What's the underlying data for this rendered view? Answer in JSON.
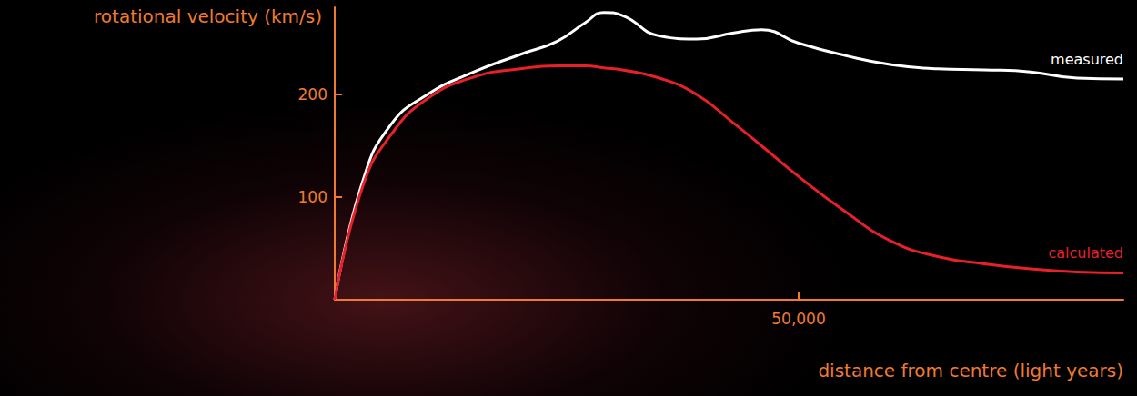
{
  "chart_data": {
    "type": "line",
    "x_label": "distance from centre (light years)",
    "y_label": "rotational velocity (km/s)",
    "x": [
      0,
      3000,
      6000,
      10000,
      15000,
      20000,
      24000,
      27000,
      29000,
      31000,
      35000,
      39000,
      43000,
      46000,
      50000,
      55000,
      60000,
      65000,
      70000,
      75000,
      80000,
      85000
    ],
    "series": [
      {
        "name": "measured",
        "color": "#ffffff",
        "values": [
          0,
          115,
          170,
          200,
          222,
          239,
          252,
          270,
          280,
          277,
          257,
          254,
          260,
          263,
          250,
          238,
          229,
          225,
          224,
          222,
          216,
          215
        ]
      },
      {
        "name": "calculated",
        "color": "#e8202a",
        "values": [
          0,
          110,
          160,
          196,
          217,
          225,
          228,
          228,
          226,
          224,
          216,
          200,
          172,
          150,
          120,
          86,
          57,
          42,
          35,
          30,
          27,
          26
        ]
      }
    ],
    "xlim": [
      0,
      85000
    ],
    "ylim": [
      0,
      285
    ],
    "xticks": [
      {
        "value": 50000,
        "label": "50,000"
      }
    ],
    "yticks": [
      100,
      200
    ],
    "grid": false
  }
}
